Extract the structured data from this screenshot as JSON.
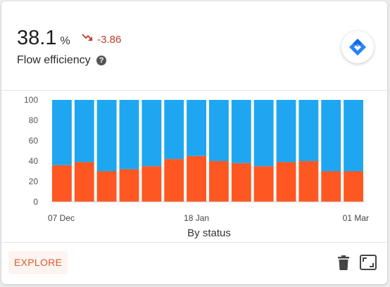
{
  "metric": {
    "value": "38.1",
    "unit": "%",
    "delta": "-3.86",
    "label": "Flow efficiency",
    "help_glyph": "?",
    "trend_icon": "trending-down-icon",
    "delta_color": "#c0392b"
  },
  "logo": {
    "icon": "jira-logo-icon",
    "color": "#2684ff"
  },
  "chart_data": {
    "type": "bar",
    "stacked": true,
    "categories": [
      "07 Dec",
      "",
      "",
      "",
      "",
      "",
      "18 Jan",
      "",
      "",
      "",
      "",
      "",
      "",
      "01 Mar"
    ],
    "x_tick_labels": [
      "07 Dec",
      "18 Jan",
      "01 Mar"
    ],
    "series": [
      {
        "values": [
          36,
          39,
          30,
          32,
          35,
          42,
          45,
          40,
          38,
          35,
          39,
          40,
          30,
          30
        ],
        "color": "#ff5722"
      },
      {
        "values": [
          64,
          61,
          70,
          68,
          65,
          58,
          55,
          60,
          62,
          65,
          61,
          60,
          70,
          70
        ],
        "color": "#1ea7f0"
      }
    ],
    "ylim": [
      0,
      100
    ],
    "yticks": [
      0,
      20,
      40,
      60,
      80,
      100
    ],
    "xlabel": "By status",
    "ylabel": "",
    "grid": false,
    "legend": "none"
  },
  "footer": {
    "explore_label": "EXPLORE",
    "delete_icon": "trash-icon",
    "expand_icon": "expand-icon"
  }
}
